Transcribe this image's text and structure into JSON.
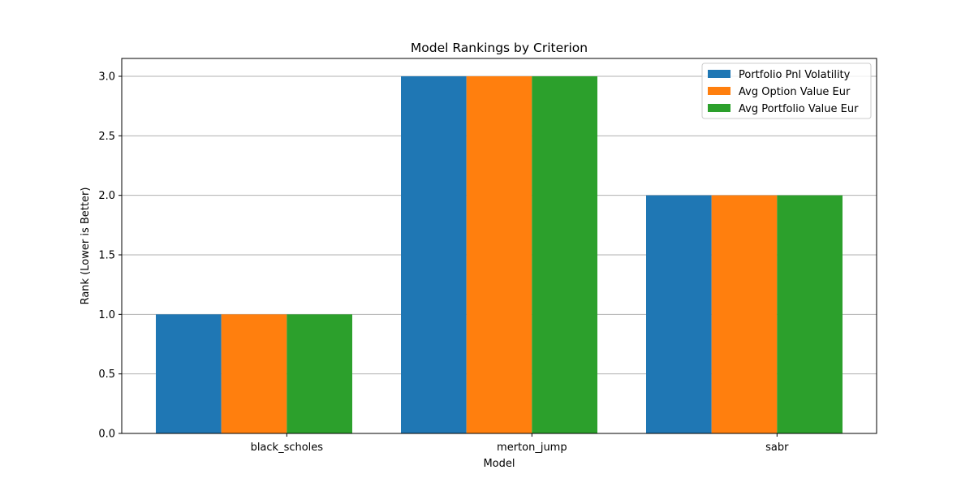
{
  "chart_data": {
    "type": "bar",
    "title": "Model Rankings by Criterion",
    "xlabel": "Model",
    "ylabel": "Rank (Lower is Better)",
    "categories": [
      "black_scholes",
      "merton_jump",
      "sabr"
    ],
    "series": [
      {
        "name": "Portfolio Pnl Volatility",
        "values": [
          1,
          3,
          2
        ],
        "color": "#1f77b4"
      },
      {
        "name": "Avg Option Value Eur",
        "values": [
          1,
          3,
          2
        ],
        "color": "#ff7f0e"
      },
      {
        "name": "Avg Portfolio Value Eur",
        "values": [
          1,
          3,
          2
        ],
        "color": "#2ca02c"
      }
    ],
    "ylim": [
      0,
      3.15
    ],
    "yticks": [
      "0.0",
      "0.5",
      "1.0",
      "1.5",
      "2.0",
      "2.5",
      "3.0"
    ],
    "grid": "y",
    "legend_position": "top-right"
  }
}
